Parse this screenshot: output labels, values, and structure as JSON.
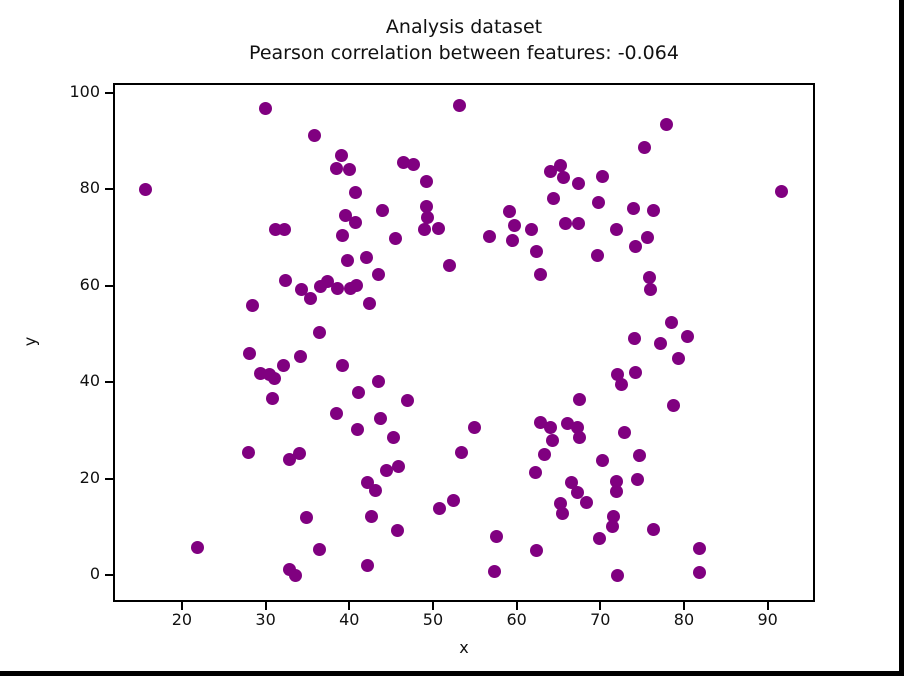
{
  "chart_data": {
    "type": "scatter",
    "title": "Analysis dataset",
    "subtitle": "Pearson correlation between features: -0.064",
    "xlabel": "x",
    "ylabel": "y",
    "xlim": [
      11.76,
      95.66
    ],
    "ylim": [
      -5.6,
      102.1
    ],
    "xticks": [
      20,
      30,
      40,
      50,
      60,
      70,
      80,
      90
    ],
    "yticks": [
      0,
      20,
      40,
      60,
      80,
      100
    ],
    "grid": false,
    "legend": null,
    "marker_color": "#800080",
    "marker_diameter_px": 13,
    "points": [
      [
        15.6,
        80.1
      ],
      [
        30.0,
        96.9
      ],
      [
        35.9,
        91.3
      ],
      [
        39.1,
        87.1
      ],
      [
        38.5,
        84.4
      ],
      [
        40.0,
        84.2
      ],
      [
        31.2,
        71.7
      ],
      [
        32.2,
        71.7
      ],
      [
        46.5,
        85.5
      ],
      [
        47.7,
        85.1
      ],
      [
        49.2,
        81.7
      ],
      [
        53.2,
        97.5
      ],
      [
        40.8,
        79.3
      ],
      [
        44.0,
        75.7
      ],
      [
        39.5,
        74.7
      ],
      [
        40.7,
        73.2
      ],
      [
        39.2,
        70.5
      ],
      [
        45.5,
        69.9
      ],
      [
        49.2,
        76.5
      ],
      [
        49.3,
        74.1
      ],
      [
        49.0,
        71.6
      ],
      [
        50.7,
        72.0
      ],
      [
        42.1,
        65.9
      ],
      [
        39.8,
        65.3
      ],
      [
        56.7,
        70.3
      ],
      [
        59.1,
        75.5
      ],
      [
        59.8,
        72.6
      ],
      [
        59.5,
        69.5
      ],
      [
        61.8,
        71.6
      ],
      [
        62.4,
        67.2
      ],
      [
        64.0,
        83.8
      ],
      [
        65.2,
        84.9
      ],
      [
        65.6,
        82.4
      ],
      [
        64.4,
        78.2
      ],
      [
        67.4,
        81.3
      ],
      [
        65.8,
        73.0
      ],
      [
        67.4,
        73.0
      ],
      [
        70.3,
        82.6
      ],
      [
        69.8,
        77.2
      ],
      [
        74.0,
        76.0
      ],
      [
        76.3,
        75.7
      ],
      [
        75.3,
        88.8
      ],
      [
        77.9,
        93.4
      ],
      [
        91.6,
        79.5
      ],
      [
        71.9,
        71.6
      ],
      [
        75.7,
        70.0
      ],
      [
        74.2,
        68.2
      ],
      [
        69.7,
        66.4
      ],
      [
        62.8,
        62.4
      ],
      [
        52.0,
        64.3
      ],
      [
        32.4,
        61.2
      ],
      [
        34.3,
        59.3
      ],
      [
        35.4,
        57.3
      ],
      [
        36.5,
        59.9
      ],
      [
        37.4,
        61.0
      ],
      [
        38.6,
        59.5
      ],
      [
        40.1,
        59.5
      ],
      [
        40.9,
        60.1
      ],
      [
        43.5,
        62.4
      ],
      [
        42.4,
        56.4
      ],
      [
        28.4,
        56.0
      ],
      [
        36.4,
        50.4
      ],
      [
        28.1,
        45.9
      ],
      [
        34.2,
        45.4
      ],
      [
        32.1,
        43.4
      ],
      [
        29.4,
        41.9
      ],
      [
        30.5,
        41.7
      ],
      [
        31.1,
        40.7
      ],
      [
        30.8,
        36.7
      ],
      [
        38.5,
        33.6
      ],
      [
        39.2,
        43.4
      ],
      [
        43.5,
        40.2
      ],
      [
        41.1,
        37.8
      ],
      [
        46.9,
        36.3
      ],
      [
        43.7,
        32.4
      ],
      [
        41.0,
        30.3
      ],
      [
        45.3,
        28.6
      ],
      [
        55.0,
        30.6
      ],
      [
        53.4,
        25.5
      ],
      [
        44.4,
        21.6
      ],
      [
        45.9,
        22.6
      ],
      [
        42.2,
        19.3
      ],
      [
        43.1,
        17.6
      ],
      [
        50.8,
        13.7
      ],
      [
        52.4,
        15.4
      ],
      [
        42.7,
        12.2
      ],
      [
        45.8,
        9.3
      ],
      [
        57.6,
        7.9
      ],
      [
        62.4,
        5.0
      ],
      [
        42.2,
        1.9
      ],
      [
        57.4,
        0.8
      ],
      [
        28.0,
        25.5
      ],
      [
        32.9,
        23.9
      ],
      [
        34.1,
        25.3
      ],
      [
        34.9,
        12.0
      ],
      [
        21.8,
        5.8
      ],
      [
        36.4,
        5.2
      ],
      [
        32.8,
        1.2
      ],
      [
        33.6,
        0.0
      ],
      [
        75.9,
        61.8
      ],
      [
        76.0,
        59.3
      ],
      [
        78.5,
        52.3
      ],
      [
        74.1,
        49.0
      ],
      [
        77.2,
        48.1
      ],
      [
        80.4,
        49.4
      ],
      [
        79.4,
        45.0
      ],
      [
        72.0,
        41.7
      ],
      [
        72.5,
        39.6
      ],
      [
        74.2,
        42.1
      ],
      [
        67.5,
        36.5
      ],
      [
        78.8,
        35.1
      ],
      [
        62.8,
        31.7
      ],
      [
        64.0,
        30.7
      ],
      [
        66.1,
        31.5
      ],
      [
        67.3,
        30.7
      ],
      [
        67.5,
        28.6
      ],
      [
        64.3,
        28.0
      ],
      [
        63.3,
        25.1
      ],
      [
        62.2,
        21.2
      ],
      [
        72.9,
        29.5
      ],
      [
        70.3,
        23.8
      ],
      [
        74.7,
        24.7
      ],
      [
        74.5,
        19.9
      ],
      [
        71.9,
        19.5
      ],
      [
        66.6,
        19.1
      ],
      [
        67.3,
        17.2
      ],
      [
        71.9,
        17.4
      ],
      [
        68.3,
        15.1
      ],
      [
        65.3,
        14.9
      ],
      [
        65.5,
        12.7
      ],
      [
        71.6,
        12.1
      ],
      [
        71.5,
        10.1
      ],
      [
        69.9,
        7.6
      ],
      [
        76.4,
        9.5
      ],
      [
        81.8,
        5.4
      ],
      [
        81.9,
        0.6
      ],
      [
        72.1,
        0.0
      ]
    ]
  }
}
